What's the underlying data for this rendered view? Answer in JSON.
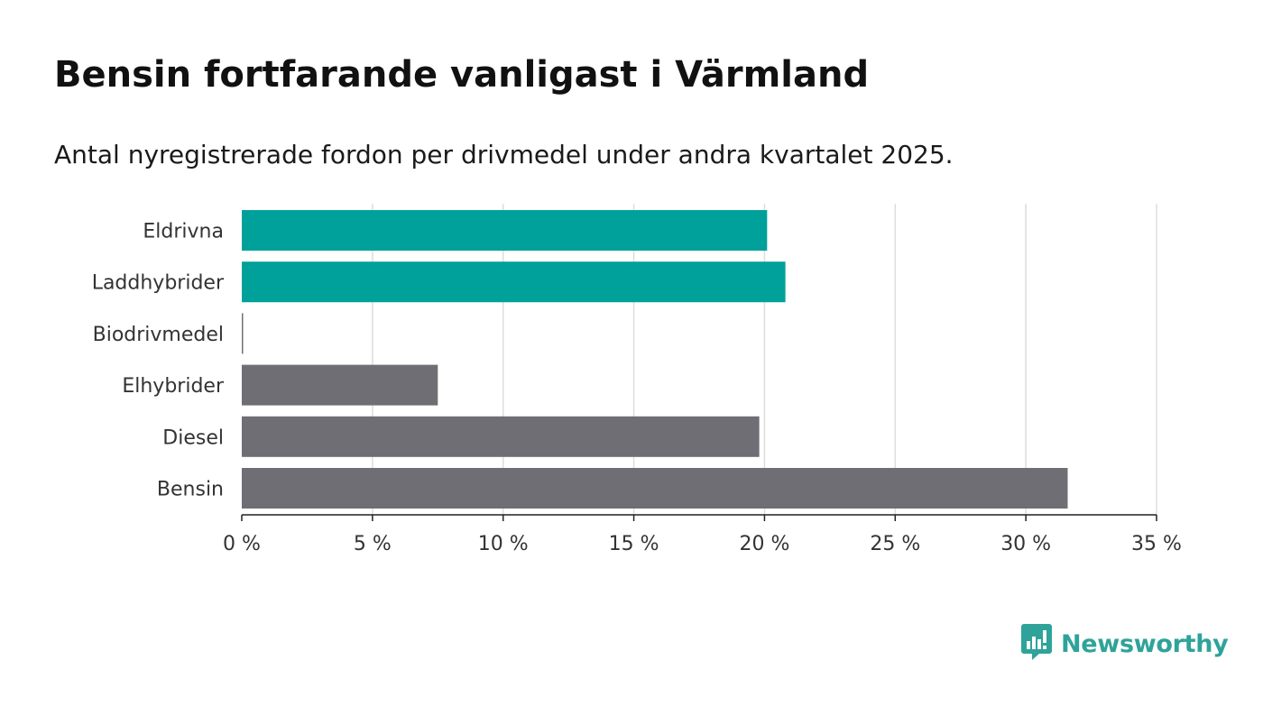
{
  "header": {
    "title": "Bensin fortfarande vanligast i Värmland",
    "subtitle": "Antal nyregistrerade fordon per drivmedel under andra kvartalet 2025."
  },
  "branding": {
    "logo_icon": "bar-chart-speech-bubble-icon",
    "logo_text": "Newsworthy",
    "logo_color": "#2fa399"
  },
  "chart_data": {
    "type": "bar",
    "orientation": "horizontal",
    "categories": [
      "Eldrivna",
      "Laddhybrider",
      "Biodrivmedel",
      "Elhybrider",
      "Diesel",
      "Bensin"
    ],
    "values": [
      20.1,
      20.8,
      0.05,
      7.5,
      19.8,
      31.6
    ],
    "colors": [
      "#00a19a",
      "#00a19a",
      "#6f6e75",
      "#6f6e75",
      "#6f6e75",
      "#6f6e75"
    ],
    "xlim": [
      0,
      35
    ],
    "xticks": [
      0,
      5,
      10,
      15,
      20,
      25,
      30,
      35
    ],
    "tick_labels": [
      "0 %",
      "5 %",
      "10 %",
      "15 %",
      "20 %",
      "25 %",
      "30 %",
      "35 %"
    ],
    "xlabel": "",
    "ylabel": "",
    "grid": "vertical",
    "legend": "none"
  }
}
